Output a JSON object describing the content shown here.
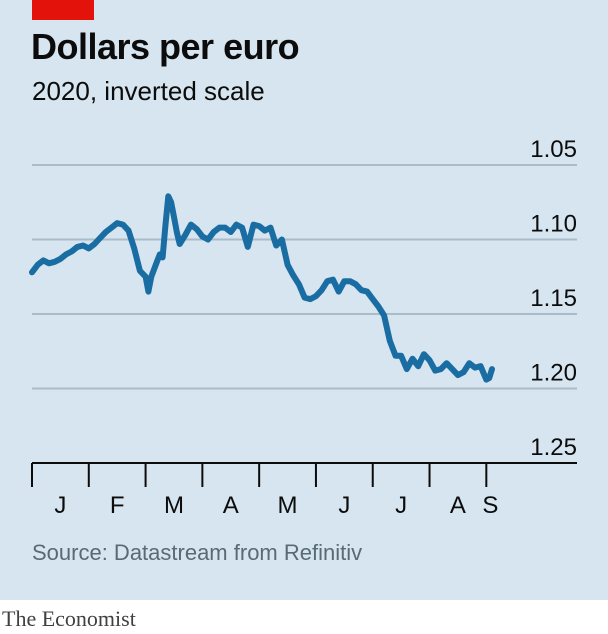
{
  "header": {
    "title": "Dollars per euro",
    "subtitle": "2020, inverted scale"
  },
  "footer": {
    "source": "Source: Datastream from Refinitiv",
    "brand": "The Economist"
  },
  "colors": {
    "background": "#d6e5ef",
    "line": "#1a6da3",
    "accent": "#e3120b",
    "grid": "#a9bcc8"
  },
  "chart_data": {
    "type": "line",
    "title": "Dollars per euro",
    "subtitle": "2020, inverted scale",
    "y_axis": {
      "inverted": true,
      "range": [
        1.05,
        1.25
      ],
      "ticks": [
        "1.05",
        "1.10",
        "1.15",
        "1.20",
        "1.25"
      ],
      "tick_values": [
        1.05,
        1.1,
        1.15,
        1.2,
        1.25
      ],
      "position": "right"
    },
    "x_axis": {
      "range_months": [
        0,
        8.1
      ],
      "month_labels": [
        "J",
        "F",
        "M",
        "A",
        "M",
        "J",
        "J",
        "A",
        "S"
      ]
    },
    "grid": true,
    "series": [
      {
        "x": [
          0,
          0.1,
          0.2,
          0.3,
          0.4,
          0.5,
          0.6,
          0.7,
          0.8,
          0.9,
          1.0,
          1.1,
          1.2,
          1.3,
          1.4,
          1.5,
          1.6,
          1.7,
          1.8,
          1.9,
          2.0,
          2.05,
          2.1,
          2.2,
          2.25,
          2.3,
          2.35,
          2.4,
          2.45,
          2.5,
          2.55,
          2.6,
          2.7,
          2.8,
          2.9,
          3.0,
          3.1,
          3.2,
          3.3,
          3.4,
          3.5,
          3.6,
          3.7,
          3.8,
          3.9,
          4.0,
          4.1,
          4.2,
          4.3,
          4.4,
          4.5,
          4.6,
          4.7,
          4.8,
          4.9,
          5.0,
          5.1,
          5.2,
          5.3,
          5.4,
          5.5,
          5.6,
          5.7,
          5.8,
          5.9,
          6.0,
          6.1,
          6.2,
          6.3,
          6.4,
          6.5,
          6.6,
          6.7,
          6.8,
          6.9,
          7.0,
          7.1,
          7.2,
          7.3,
          7.4,
          7.5,
          7.6,
          7.7,
          7.8,
          7.9,
          8.0,
          8.05,
          8.1
        ],
        "values": [
          1.122,
          1.117,
          1.114,
          1.116,
          1.115,
          1.113,
          1.11,
          1.108,
          1.105,
          1.104,
          1.106,
          1.103,
          1.099,
          1.095,
          1.092,
          1.089,
          1.09,
          1.094,
          1.106,
          1.121,
          1.125,
          1.135,
          1.125,
          1.115,
          1.11,
          1.112,
          1.09,
          1.071,
          1.075,
          1.085,
          1.095,
          1.103,
          1.097,
          1.09,
          1.093,
          1.098,
          1.1,
          1.095,
          1.092,
          1.092,
          1.095,
          1.09,
          1.092,
          1.105,
          1.09,
          1.091,
          1.094,
          1.092,
          1.104,
          1.1,
          1.117,
          1.124,
          1.13,
          1.139,
          1.14,
          1.138,
          1.134,
          1.128,
          1.127,
          1.135,
          1.128,
          1.128,
          1.13,
          1.134,
          1.135,
          1.14,
          1.145,
          1.151,
          1.168,
          1.178,
          1.178,
          1.187,
          1.18,
          1.185,
          1.177,
          1.181,
          1.188,
          1.187,
          1.183,
          1.187,
          1.191,
          1.189,
          1.183,
          1.186,
          1.185,
          1.194,
          1.193,
          1.187
        ]
      }
    ]
  }
}
